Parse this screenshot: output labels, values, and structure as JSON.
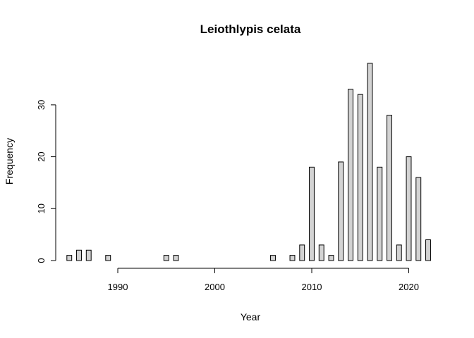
{
  "chart_data": {
    "type": "bar",
    "title": "Leiothlypis celata",
    "xlabel": "Year",
    "ylabel": "Frequency",
    "x_ticks": [
      1990,
      2000,
      2010,
      2020
    ],
    "y_ticks": [
      0,
      10,
      20,
      30
    ],
    "xlim": [
      1984.8,
      2022.4
    ],
    "ylim": [
      0,
      38
    ],
    "grid": false,
    "legend": "none",
    "bar_color": "#d3d3d3",
    "series": [
      {
        "x": [
          1985,
          1986,
          1987,
          1988,
          1989,
          1990,
          1991,
          1992,
          1993,
          1994,
          1995,
          1996,
          1997,
          1998,
          1999,
          2000,
          2001,
          2002,
          2003,
          2004,
          2005,
          2006,
          2007,
          2008,
          2009,
          2010,
          2011,
          2012,
          2013,
          2014,
          2015,
          2016,
          2017,
          2018,
          2019,
          2020,
          2021,
          2022
        ],
        "values": [
          1,
          2,
          2,
          0,
          1,
          0,
          0,
          0,
          0,
          0,
          1,
          1,
          0,
          0,
          0,
          0,
          0,
          0,
          0,
          0,
          0,
          1,
          0,
          1,
          3,
          18,
          3,
          1,
          19,
          33,
          32,
          38,
          18,
          28,
          3,
          20,
          16,
          4
        ]
      }
    ]
  }
}
